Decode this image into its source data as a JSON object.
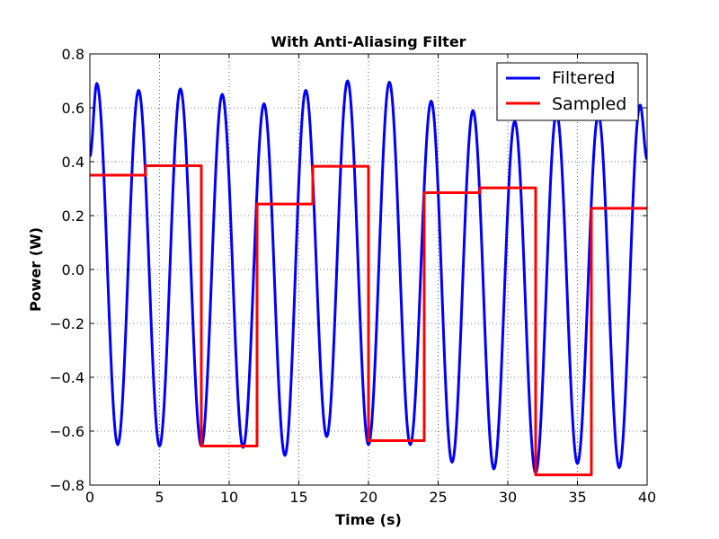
{
  "chart_data": {
    "type": "line",
    "title": "With Anti-Aliasing Filter",
    "xlabel": "Time (s)",
    "ylabel": "Power (W)",
    "xlim": [
      0,
      40
    ],
    "ylim": [
      -0.8,
      0.8
    ],
    "xticks": [
      0,
      5,
      10,
      15,
      20,
      25,
      30,
      35,
      40
    ],
    "yticks": [
      -0.8,
      -0.6,
      -0.4,
      -0.2,
      0.0,
      0.2,
      0.4,
      0.6,
      0.8
    ],
    "xtick_labels": [
      "0",
      "5",
      "10",
      "15",
      "20",
      "25",
      "30",
      "35",
      "40"
    ],
    "ytick_labels": [
      "−0.8",
      "−0.6",
      "−0.4",
      "−0.2",
      "0.0",
      "0.2",
      "0.4",
      "0.6",
      "0.8"
    ],
    "grid": true,
    "legend_position": "top-right",
    "series": [
      {
        "name": "Filtered",
        "color": "#0000ff",
        "style": "line",
        "x": [
          0,
          0.5,
          2.0,
          3.5,
          5.0,
          6.5,
          8.0,
          9.5,
          11.0,
          12.5,
          14.0,
          15.5,
          17.0,
          18.5,
          20.0,
          21.5,
          23.0,
          24.5,
          26.0,
          27.5,
          29.0,
          30.5,
          32.0,
          33.5,
          35.0,
          36.5,
          38.0,
          39.5,
          40.0
        ],
        "y": [
          0.42,
          0.69,
          -0.65,
          0.665,
          -0.655,
          0.67,
          -0.655,
          0.65,
          -0.66,
          0.615,
          -0.69,
          0.665,
          -0.62,
          0.7,
          -0.65,
          0.695,
          -0.65,
          0.625,
          -0.715,
          0.59,
          -0.74,
          0.55,
          -0.755,
          0.58,
          -0.72,
          0.575,
          -0.735,
          0.61,
          0.41
        ]
      },
      {
        "name": "Sampled",
        "color": "#ff0000",
        "style": "step",
        "x": [
          0,
          4,
          8,
          12,
          16,
          20,
          24,
          28,
          32,
          36,
          40
        ],
        "y": [
          0.35,
          0.385,
          -0.655,
          0.243,
          0.383,
          -0.635,
          0.285,
          0.303,
          -0.762,
          0.227,
          0.227
        ]
      }
    ]
  }
}
